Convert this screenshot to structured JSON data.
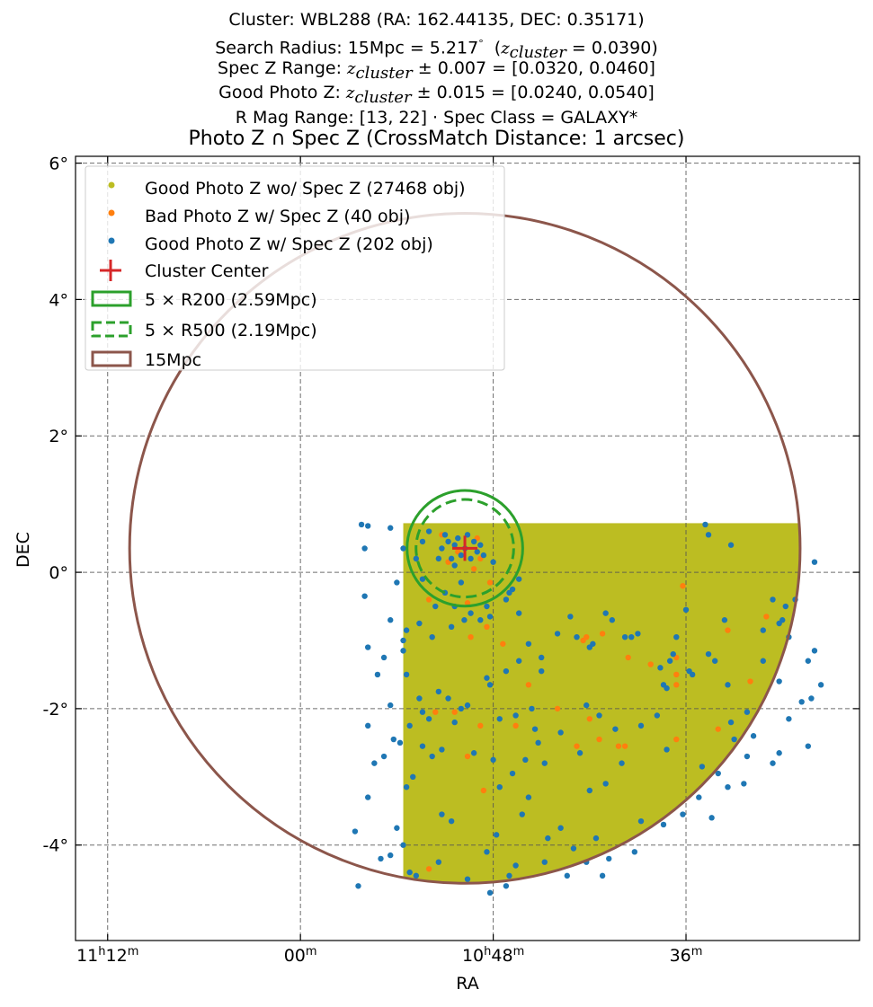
{
  "header": {
    "line1": "Cluster: WBL288 (RA: 162.44135, DEC: 0.35171)",
    "line2_pre": "Search Radius: 15Mpc = 5.217",
    "line2_deg": "°",
    "line2_z": "z",
    "line2_sub": "cluster",
    "line2_post": " = 0.0390)",
    "line3_pre": "Spec Z Range: ",
    "line3_z": "z",
    "line3_sub": "cluster",
    "line3_post": " ± 0.007 = [0.0320, 0.0460]",
    "line4_pre": "Good Photo Z: ",
    "line4_z": "z",
    "line4_sub": "cluster",
    "line4_post": " ± 0.015 = [0.0240, 0.0540]",
    "line5": "R Mag Range: [13, 22] · Spec Class = GALAXY*",
    "plot_title": "Photo Z ∩ Spec Z (CrossMatch Distance: 1 arcsec)"
  },
  "chart_data": {
    "type": "scatter",
    "xlabel": "RA",
    "ylabel": "DEC",
    "xlim": [
      168.5,
      156.3
    ],
    "ylim": [
      -5.4,
      6.1
    ],
    "x_ticks": [
      {
        "value": 168.0,
        "hour": "11",
        "min": "12"
      },
      {
        "value": 165.0,
        "hour": "",
        "min": "00"
      },
      {
        "value": 162.0,
        "hour": "10",
        "min": "48"
      },
      {
        "value": 159.0,
        "hour": "",
        "min": "36"
      }
    ],
    "y_ticks": [
      {
        "value": 6,
        "label": "6°"
      },
      {
        "value": 4,
        "label": "4°"
      },
      {
        "value": 2,
        "label": "2°"
      },
      {
        "value": 0,
        "label": "0°"
      },
      {
        "value": -2,
        "label": "-2°"
      },
      {
        "value": -4,
        "label": "-4°"
      }
    ],
    "grid": true,
    "legend_placement": "upper-left",
    "colors": {
      "good_no_spec": "#bcbd22",
      "bad_photo": "#ff7f0e",
      "good_spec": "#1f77b4",
      "center": "#d62728",
      "r200": "#2ca02c",
      "r500": "#2ca02c",
      "radius15": "#8c564b"
    },
    "cluster_center": {
      "ra": 162.44135,
      "dec": 0.35171
    },
    "circles": [
      {
        "name": "5 × R200 (2.59Mpc)",
        "radius_deg": 0.9,
        "style": "solid"
      },
      {
        "name": "5 × R500 (2.19Mpc)",
        "radius_deg": 0.76,
        "style": "dashed"
      },
      {
        "name": "15Mpc",
        "radius_deg": 5.217,
        "style": "solid"
      }
    ],
    "photo_region": {
      "ra_min": 156.6,
      "ra_max": 163.4,
      "dec_min": -4.9,
      "dec_max": 0.72
    },
    "series": [
      {
        "name": "Good Photo Z wo/ Spec Z (27468 obj)",
        "points": []
      },
      {
        "name": "Bad Photo Z w/ Spec Z (40 obj)",
        "points": [
          [
            162.8,
            0.55
          ],
          [
            162.7,
            0.15
          ],
          [
            162.55,
            0.3
          ],
          [
            162.25,
            0.5
          ],
          [
            162.2,
            0.2
          ],
          [
            162.3,
            0.05
          ],
          [
            162.4,
            -0.45
          ],
          [
            162.1,
            -0.8
          ],
          [
            162.05,
            -0.15
          ],
          [
            163.0,
            -0.4
          ],
          [
            162.9,
            -2.05
          ],
          [
            162.6,
            -2.05
          ],
          [
            162.2,
            -2.25
          ],
          [
            162.4,
            -2.7
          ],
          [
            161.65,
            -2.25
          ],
          [
            161.0,
            -2.0
          ],
          [
            160.5,
            -2.15
          ],
          [
            160.35,
            -2.45
          ],
          [
            160.05,
            -2.55
          ],
          [
            160.7,
            -2.55
          ],
          [
            160.3,
            -0.9
          ],
          [
            159.9,
            -1.25
          ],
          [
            159.55,
            -1.35
          ],
          [
            159.15,
            -1.25
          ],
          [
            159.15,
            -1.5
          ],
          [
            159.15,
            -1.65
          ],
          [
            160.6,
            -1.0
          ],
          [
            158.35,
            -0.85
          ],
          [
            157.75,
            -0.65
          ],
          [
            159.15,
            -2.45
          ],
          [
            163.0,
            -4.35
          ],
          [
            162.35,
            -0.95
          ],
          [
            161.85,
            -1.05
          ],
          [
            159.05,
            -0.2
          ],
          [
            158.0,
            -1.6
          ],
          [
            161.45,
            -1.65
          ],
          [
            162.15,
            -3.2
          ],
          [
            160.55,
            -0.95
          ],
          [
            158.5,
            -2.3
          ],
          [
            159.95,
            -2.55
          ]
        ]
      },
      {
        "name": "Good Photo Z w/ Spec Z (202 obj)",
        "points": [
          [
            162.44,
            0.35
          ],
          [
            162.6,
            0.4
          ],
          [
            162.5,
            0.25
          ],
          [
            162.3,
            0.45
          ],
          [
            162.35,
            0.2
          ],
          [
            162.65,
            0.2
          ],
          [
            162.55,
            0.5
          ],
          [
            162.2,
            0.4
          ],
          [
            162.8,
            0.35
          ],
          [
            162.7,
            0.45
          ],
          [
            162.4,
            0.55
          ],
          [
            162.25,
            0.3
          ],
          [
            162.6,
            0.1
          ],
          [
            162.85,
            0.2
          ],
          [
            162.15,
            0.25
          ],
          [
            162.75,
            0.55
          ],
          [
            162.5,
            -0.15
          ],
          [
            162.35,
            -0.6
          ],
          [
            162.45,
            -0.7
          ],
          [
            162.65,
            -0.8
          ],
          [
            162.2,
            -0.7
          ],
          [
            162.6,
            -0.5
          ],
          [
            162.9,
            -0.5
          ],
          [
            163.1,
            -0.1
          ],
          [
            163.2,
            0.2
          ],
          [
            163.1,
            0.45
          ],
          [
            163.0,
            0.6
          ],
          [
            162.0,
            0.15
          ],
          [
            162.1,
            -0.5
          ],
          [
            162.05,
            -0.65
          ],
          [
            161.8,
            -0.4
          ],
          [
            161.75,
            -0.3
          ],
          [
            161.6,
            -0.1
          ],
          [
            161.7,
            -0.25
          ],
          [
            163.5,
            -0.15
          ],
          [
            163.6,
            -0.7
          ],
          [
            163.35,
            -0.85
          ],
          [
            163.4,
            -1.0
          ],
          [
            163.4,
            -1.15
          ],
          [
            163.15,
            -0.75
          ],
          [
            162.95,
            -0.95
          ],
          [
            163.4,
            0.35
          ],
          [
            163.6,
            0.65
          ],
          [
            163.95,
            0.68
          ],
          [
            164.05,
            0.7
          ],
          [
            164.0,
            0.35
          ],
          [
            164.0,
            -0.35
          ],
          [
            163.35,
            -1.5
          ],
          [
            162.85,
            -1.75
          ],
          [
            162.7,
            -1.85
          ],
          [
            162.5,
            -2.0
          ],
          [
            162.6,
            -2.2
          ],
          [
            162.4,
            -1.95
          ],
          [
            162.3,
            -2.65
          ],
          [
            162.0,
            -2.75
          ],
          [
            161.9,
            -2.15
          ],
          [
            161.65,
            -2.1
          ],
          [
            161.4,
            -2.0
          ],
          [
            161.35,
            -2.3
          ],
          [
            161.5,
            -2.75
          ],
          [
            161.2,
            -2.8
          ],
          [
            161.3,
            -2.5
          ],
          [
            160.95,
            -2.35
          ],
          [
            160.65,
            -2.65
          ],
          [
            160.35,
            -2.1
          ],
          [
            160.1,
            -2.3
          ],
          [
            160.0,
            -2.8
          ],
          [
            159.7,
            -2.25
          ],
          [
            159.45,
            -2.1
          ],
          [
            159.3,
            -2.6
          ],
          [
            162.05,
            -1.65
          ],
          [
            162.1,
            -1.55
          ],
          [
            161.8,
            -1.45
          ],
          [
            161.6,
            -1.3
          ],
          [
            161.45,
            -1.05
          ],
          [
            161.25,
            -1.25
          ],
          [
            161.0,
            -0.9
          ],
          [
            160.8,
            -0.65
          ],
          [
            160.7,
            -0.95
          ],
          [
            160.5,
            -1.1
          ],
          [
            160.45,
            -1.05
          ],
          [
            160.25,
            -0.6
          ],
          [
            160.15,
            -0.7
          ],
          [
            159.95,
            -0.95
          ],
          [
            159.85,
            -0.95
          ],
          [
            159.75,
            -0.9
          ],
          [
            159.4,
            -1.4
          ],
          [
            159.35,
            -1.65
          ],
          [
            159.25,
            -1.3
          ],
          [
            159.3,
            -1.7
          ],
          [
            159.0,
            -0.55
          ],
          [
            158.95,
            -1.45
          ],
          [
            158.9,
            -1.5
          ],
          [
            158.65,
            -1.2
          ],
          [
            158.55,
            -1.3
          ],
          [
            158.4,
            -0.7
          ],
          [
            158.35,
            -1.65
          ],
          [
            158.3,
            -2.2
          ],
          [
            158.25,
            -2.45
          ],
          [
            158.05,
            -2.05
          ],
          [
            157.95,
            -2.4
          ],
          [
            157.8,
            -1.3
          ],
          [
            157.55,
            -1.6
          ],
          [
            157.55,
            -2.65
          ],
          [
            157.4,
            -2.15
          ],
          [
            157.2,
            -1.9
          ],
          [
            157.05,
            -1.85
          ],
          [
            157.1,
            -1.3
          ],
          [
            157.0,
            -1.15
          ],
          [
            157.65,
            -0.4
          ],
          [
            157.45,
            -0.5
          ],
          [
            157.3,
            -0.4
          ],
          [
            157.5,
            -0.7
          ],
          [
            157.55,
            -0.75
          ],
          [
            157.0,
            0.15
          ],
          [
            158.3,
            0.4
          ],
          [
            158.65,
            0.55
          ],
          [
            158.7,
            0.7
          ],
          [
            157.8,
            -0.85
          ],
          [
            157.4,
            -0.95
          ],
          [
            159.15,
            -0.95
          ],
          [
            159.2,
            -1.2
          ],
          [
            158.5,
            -2.95
          ],
          [
            158.75,
            -2.85
          ],
          [
            158.8,
            -3.3
          ],
          [
            158.6,
            -3.6
          ],
          [
            158.35,
            -3.15
          ],
          [
            158.1,
            -3.1
          ],
          [
            158.05,
            -2.7
          ],
          [
            157.65,
            -2.8
          ],
          [
            157.1,
            -2.55
          ],
          [
            156.9,
            -1.65
          ],
          [
            159.05,
            -3.55
          ],
          [
            159.35,
            -3.7
          ],
          [
            159.7,
            -3.65
          ],
          [
            160.25,
            -3.1
          ],
          [
            160.5,
            -3.2
          ],
          [
            160.95,
            -3.75
          ],
          [
            161.15,
            -3.9
          ],
          [
            161.55,
            -3.55
          ],
          [
            161.45,
            -3.3
          ],
          [
            161.7,
            -2.95
          ],
          [
            161.9,
            -3.15
          ],
          [
            161.95,
            -3.85
          ],
          [
            162.1,
            -4.1
          ],
          [
            161.75,
            -4.45
          ],
          [
            161.8,
            -4.6
          ],
          [
            162.05,
            -4.7
          ],
          [
            161.65,
            -4.3
          ],
          [
            161.2,
            -4.25
          ],
          [
            160.75,
            -4.05
          ],
          [
            160.4,
            -3.9
          ],
          [
            160.3,
            -4.45
          ],
          [
            160.55,
            -4.25
          ],
          [
            160.2,
            -4.2
          ],
          [
            159.8,
            -4.1
          ],
          [
            160.85,
            -4.45
          ],
          [
            162.4,
            -4.5
          ],
          [
            162.85,
            -4.25
          ],
          [
            163.2,
            -4.45
          ],
          [
            163.3,
            -4.4
          ],
          [
            162.8,
            -3.55
          ],
          [
            162.65,
            -3.65
          ],
          [
            163.75,
            -4.2
          ],
          [
            163.5,
            -3.75
          ],
          [
            164.1,
            -4.6
          ],
          [
            164.15,
            -3.8
          ],
          [
            163.25,
            -3.0
          ],
          [
            163.35,
            -3.15
          ],
          [
            163.4,
            -4.0
          ],
          [
            163.6,
            -4.15
          ],
          [
            163.95,
            -3.3
          ],
          [
            163.7,
            -2.7
          ],
          [
            163.85,
            -2.8
          ],
          [
            163.45,
            -2.5
          ],
          [
            163.0,
            -2.15
          ],
          [
            163.1,
            -2.05
          ],
          [
            163.15,
            -1.85
          ],
          [
            163.1,
            -2.55
          ],
          [
            163.3,
            -2.25
          ],
          [
            163.55,
            -2.45
          ],
          [
            163.95,
            -2.25
          ],
          [
            163.6,
            -1.95
          ],
          [
            163.8,
            -1.5
          ],
          [
            163.95,
            -1.1
          ],
          [
            163.7,
            -1.25
          ],
          [
            162.95,
            -2.7
          ],
          [
            162.8,
            -2.6
          ],
          [
            161.25,
            -1.45
          ],
          [
            160.55,
            -1.95
          ],
          [
            162.75,
            -0.3
          ],
          [
            161.6,
            -0.6
          ]
        ]
      }
    ]
  },
  "legend": [
    {
      "label": "Good Photo Z wo/ Spec Z (27468 obj)"
    },
    {
      "label": "Bad Photo Z w/ Spec Z (40 obj)"
    },
    {
      "label": "Good Photo Z w/ Spec Z (202 obj)"
    },
    {
      "label": "Cluster Center"
    },
    {
      "label": "5 × R200 (2.59Mpc)"
    },
    {
      "label": "5 × R500 (2.19Mpc)"
    },
    {
      "label": "15Mpc"
    }
  ]
}
